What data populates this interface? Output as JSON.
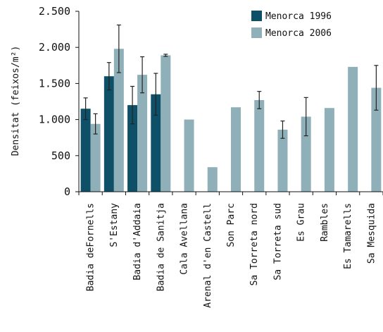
{
  "chart_data": {
    "type": "bar",
    "ylabel": "Densitat (feixos/m²)",
    "xlabel": "",
    "ylim": [
      0,
      2500
    ],
    "yticks": [
      0,
      500,
      1000,
      1500,
      2000,
      2500
    ],
    "ytick_labels": [
      "0",
      "500",
      "1.000",
      "1.500",
      "2.000",
      "2.500"
    ],
    "grid": false,
    "legend_position": "top-right",
    "categories": [
      "Badia deFornells",
      "S'Estany",
      "Badia d'Addaia",
      "Badia de Sanitja",
      "Cala Avellana",
      "Arenal d'en Castell",
      "Son Parc",
      "Sa Torreta nord",
      "Sa Torreta sud",
      "Es Grau",
      "Rambles",
      "Es Tamarells",
      "Sa Mesquida"
    ],
    "series": [
      {
        "name": "Menorca 1996",
        "color": "#0e5068",
        "values": [
          1150,
          1600,
          1200,
          1350,
          null,
          null,
          null,
          null,
          null,
          null,
          null,
          null,
          null
        ],
        "errors": [
          150,
          190,
          260,
          290,
          null,
          null,
          null,
          null,
          null,
          null,
          null,
          null,
          null
        ]
      },
      {
        "name": "Menorca 2006",
        "color": "#8fb0b9",
        "values": [
          940,
          1980,
          1620,
          1890,
          1000,
          340,
          1170,
          1270,
          860,
          1040,
          1160,
          1730,
          1440
        ],
        "errors": [
          140,
          330,
          250,
          15,
          null,
          null,
          null,
          120,
          120,
          265,
          null,
          null,
          310
        ]
      }
    ]
  }
}
